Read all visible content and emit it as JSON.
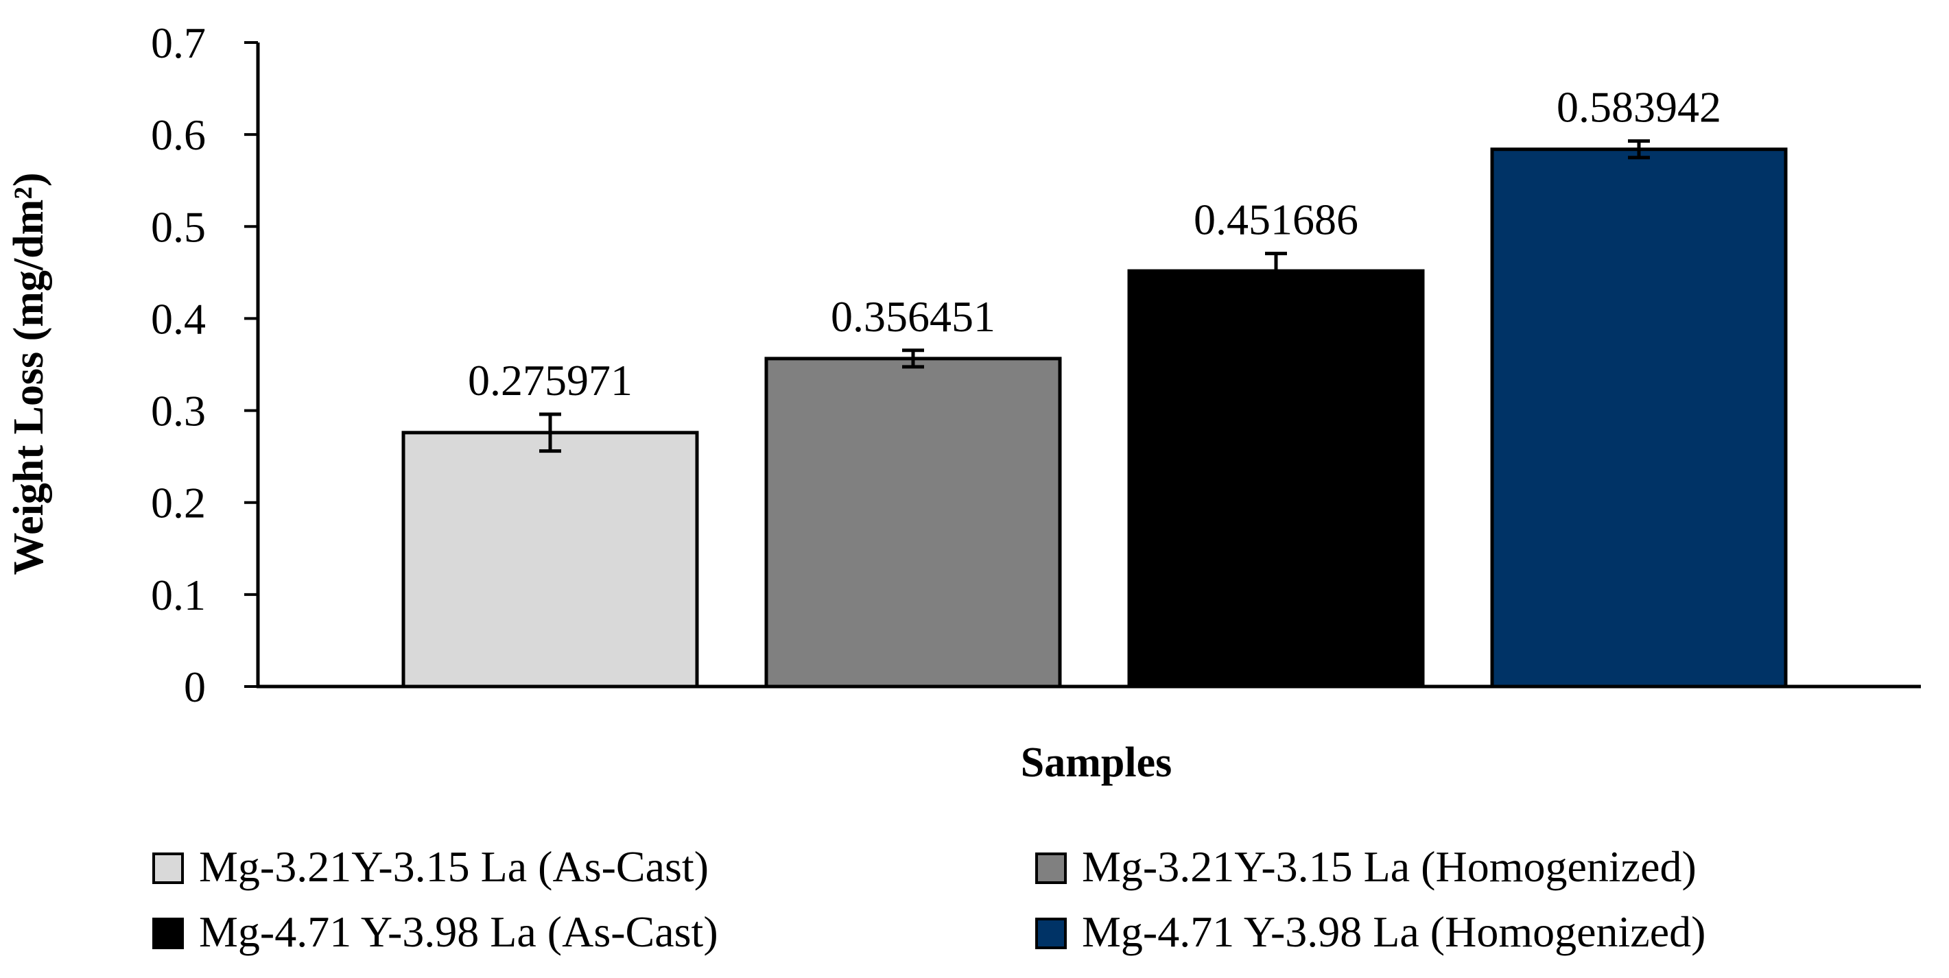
{
  "chart_data": {
    "type": "bar",
    "title": "",
    "xlabel": "Samples",
    "ylabel": "Weight Loss  (mg/dm²)",
    "ylim": [
      0,
      0.7
    ],
    "yticks": [
      "0",
      "0.1",
      "0.2",
      "0.3",
      "0.4",
      "0.5",
      "0.6",
      "0.7"
    ],
    "grid": false,
    "legend_position": "bottom",
    "series": [
      {
        "name": "Mg-3.21Y-3.15 La (As-Cast)",
        "value": 0.275971,
        "label": "0.275971",
        "error": 0.02,
        "color": "#d9d9d9"
      },
      {
        "name": "Mg-3.21Y-3.15 La (Homogenized)",
        "value": 0.356451,
        "label": "0.356451",
        "error": 0.009,
        "color": "#808080"
      },
      {
        "name": "Mg-4.71 Y-3.98 La (As-Cast)",
        "value": 0.451686,
        "label": "0.451686",
        "error": 0.019,
        "color": "#000000"
      },
      {
        "name": "Mg-4.71 Y-3.98 La (Homogenized)",
        "value": 0.583942,
        "label": "0.583942",
        "error": 0.009,
        "color": "#003366"
      }
    ],
    "bar_edge_color": "#000000",
    "axis_color": "#000000"
  }
}
